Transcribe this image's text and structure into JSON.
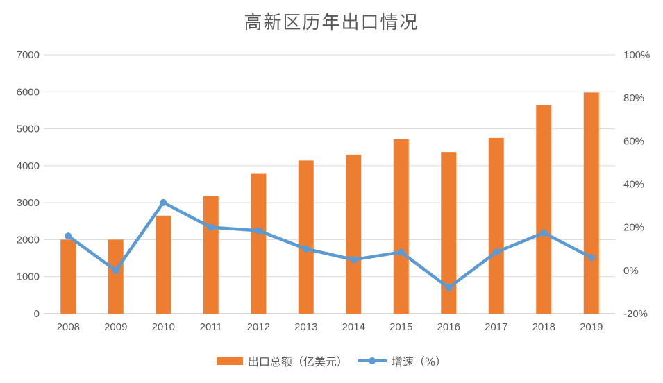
{
  "title": "高新区历年出口情况",
  "colors": {
    "bar": "#ED7D31",
    "line": "#5B9BD5",
    "grid": "#D9D9D9",
    "axis_line": "#D9D9D9",
    "axis_text": "#595959",
    "title_text": "#595959",
    "background": "#FFFFFF"
  },
  "legend": {
    "items": [
      {
        "label": "出口总额（亿美元）",
        "marker": "bar-swatch"
      },
      {
        "label": "增速（%）",
        "marker": "line-swatch"
      }
    ]
  },
  "chart_data": {
    "type": "combo",
    "title": "高新区历年出口情况",
    "categories": [
      "2008",
      "2009",
      "2010",
      "2011",
      "2012",
      "2013",
      "2014",
      "2015",
      "2016",
      "2017",
      "2018",
      "2019"
    ],
    "series": [
      {
        "name": "出口总额（亿美元）",
        "type": "bar",
        "axis": "left",
        "color": "#ED7D31",
        "values": [
          2000,
          2000,
          2650,
          3180,
          3780,
          4140,
          4300,
          4720,
          4370,
          4750,
          5630,
          5980
        ]
      },
      {
        "name": "增速（%）",
        "type": "line",
        "axis": "right",
        "color": "#5B9BD5",
        "values": [
          16,
          0,
          31.5,
          20,
          18.5,
          10,
          5,
          8.5,
          -8,
          8.5,
          17.5,
          6
        ]
      }
    ],
    "axes": {
      "left": {
        "min": 0,
        "max": 7000,
        "step": 1000,
        "tick_labels": [
          "0",
          "1000",
          "2000",
          "3000",
          "4000",
          "5000",
          "6000",
          "7000"
        ]
      },
      "right": {
        "min": -20,
        "max": 100,
        "step": 20,
        "tick_labels": [
          "-20%",
          "0%",
          "20%",
          "40%",
          "60%",
          "80%",
          "100%"
        ],
        "unit": "%"
      },
      "x": {
        "tick_labels": [
          "2008",
          "2009",
          "2010",
          "2011",
          "2012",
          "2013",
          "2014",
          "2015",
          "2016",
          "2017",
          "2018",
          "2019"
        ]
      }
    },
    "grid": true,
    "legend_position": "bottom"
  }
}
